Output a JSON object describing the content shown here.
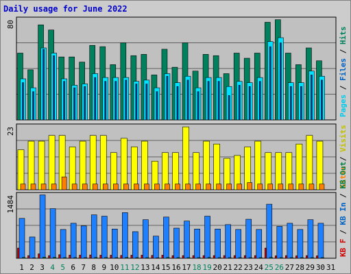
{
  "title": "Daily usage for June 2022",
  "colors": {
    "bg": "#cccccc",
    "panel": "#c0c0c0",
    "hits": "#00805c",
    "files": "#00e0ff",
    "pages": "#00c8e8",
    "visits": "#ffff00",
    "sites": "#ff8000",
    "kbin": "#1e7fff",
    "kbout": "#008040",
    "kbf": "#cc0000",
    "weekend_label": "#00805c",
    "weekday_label": "#000000"
  },
  "legend": {
    "hits": "Hits",
    "files": "Files",
    "pages": "Pages",
    "visits": "Visits",
    "sites": "Sites",
    "kbout": "KB Out",
    "kbin": "KB In",
    "kbf": "KB F",
    "sep": "/"
  },
  "chart_data": {
    "type": "bar",
    "title": "Daily usage for June 2022",
    "categories": [
      "1",
      "2",
      "3",
      "4",
      "5",
      "6",
      "7",
      "8",
      "9",
      "10",
      "11",
      "12",
      "13",
      "14",
      "15",
      "16",
      "17",
      "18",
      "19",
      "20",
      "21",
      "22",
      "23",
      "24",
      "25",
      "26",
      "27",
      "28",
      "29",
      "30",
      "31"
    ],
    "weekend_days": [
      4,
      5,
      11,
      12,
      18,
      19,
      25,
      26
    ],
    "panels": [
      {
        "name": "hits-files-pages",
        "ymax_label": "80",
        "ymax": 80,
        "series": [
          {
            "name": "Hits",
            "values": [
              52,
              39,
              74,
              70,
              49,
              49,
              45,
              58,
              57,
              43,
              60,
              50,
              51,
              35,
              55,
              41,
              60,
              38,
              51,
              50,
              36,
              52,
              48,
              52,
              76,
              78,
              52,
              43,
              56,
              46,
              0
            ]
          },
          {
            "name": "Files",
            "values": [
              32,
              25,
              56,
              52,
              32,
              27,
              28,
              36,
              33,
              33,
              33,
              30,
              31,
              25,
              36,
              29,
              34,
              25,
              33,
              33,
              26,
              30,
              29,
              33,
              61,
              64,
              29,
              29,
              38,
              34,
              0
            ]
          },
          {
            "name": "Pages",
            "values": [
              29,
              22,
              55,
              50,
              30,
              25,
              26,
              33,
              30,
              30,
              31,
              28,
              28,
              22,
              34,
              26,
              31,
              22,
              30,
              30,
              19,
              27,
              26,
              30,
              57,
              60,
              26,
              26,
              35,
              31,
              0
            ]
          }
        ]
      },
      {
        "name": "visits-sites",
        "ymax_label": "23",
        "ymax": 23,
        "series": [
          {
            "name": "Visits",
            "values": [
              14,
              17,
              17,
              19,
              19,
              15,
              17,
              19,
              19,
              13,
              18,
              15,
              17,
              10,
              13,
              13,
              22,
              13,
              17,
              16,
              11,
              12,
              15,
              17,
              13,
              13,
              13,
              16,
              19,
              17,
              0
            ]
          },
          {
            "name": "Sites",
            "values": [
              2,
              2,
              2,
              2,
              4.5,
              2,
              2,
              2,
              2,
              2,
              2,
              2,
              2,
              2,
              2,
              2,
              2,
              2,
              2,
              2,
              2,
              2,
              2.5,
              2,
              2,
              2,
              2,
              2,
              2,
              2,
              0
            ]
          }
        ]
      },
      {
        "name": "kb-in-out",
        "ymax_label": "1484",
        "ymax": 1484,
        "series": [
          {
            "name": "KB F",
            "values": [
              230,
              60,
              100,
              60,
              80,
              70,
              70,
              75,
              70,
              70,
              65,
              70,
              70,
              65,
              70,
              60,
              60,
              60,
              60,
              60,
              60,
              60,
              60,
              60,
              230,
              55,
              60,
              55,
              60,
              55,
              0
            ]
          },
          {
            "name": "KB In",
            "values": [
              900,
              480,
              1430,
              1120,
              650,
              790,
              730,
              980,
              950,
              660,
              1030,
              600,
              870,
              500,
              930,
              680,
              840,
              660,
              950,
              660,
              760,
              650,
              880,
              650,
              1220,
              720,
              790,
              650,
              870,
              790,
              0
            ]
          },
          {
            "name": "KB Out",
            "values": [
              20,
              10,
              25,
              20,
              15,
              15,
              15,
              18,
              18,
              15,
              18,
              15,
              15,
              12,
              18,
              15,
              15,
              15,
              18,
              15,
              15,
              15,
              15,
              15,
              20,
              15,
              15,
              15,
              15,
              15,
              0
            ]
          }
        ]
      }
    ],
    "grid": true,
    "legend_position": "right"
  }
}
